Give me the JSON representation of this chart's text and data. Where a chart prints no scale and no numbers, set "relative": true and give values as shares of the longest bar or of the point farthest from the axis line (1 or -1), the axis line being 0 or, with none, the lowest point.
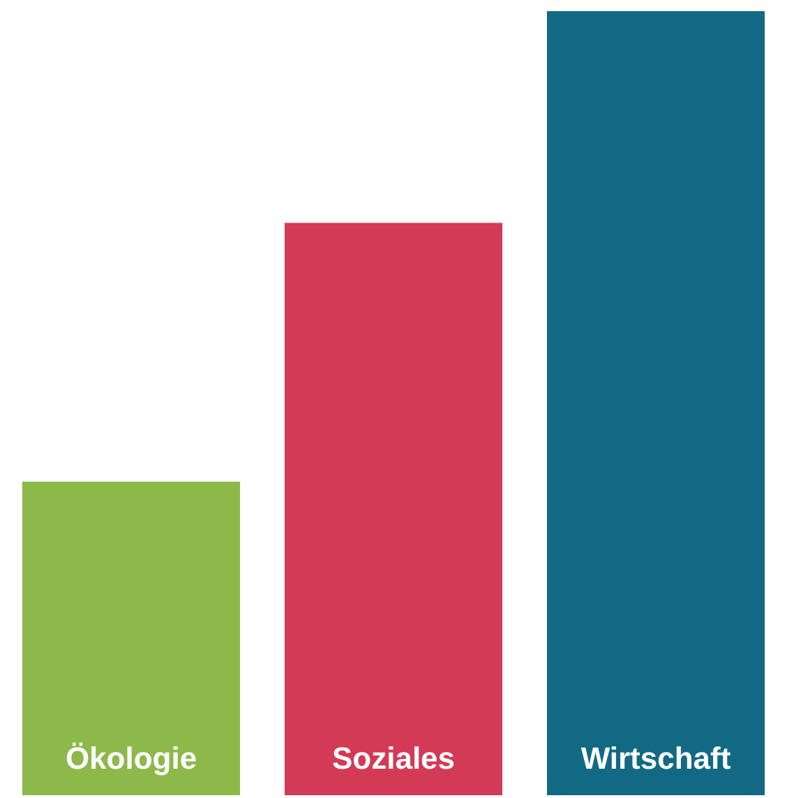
{
  "chart_data": {
    "type": "bar",
    "relative": true,
    "categories": [
      "Ökologie",
      "Soziales",
      "Wirtschaft"
    ],
    "values": [
      0.4,
      0.73,
      1
    ],
    "colors": [
      "#8db84a",
      "#d33a55",
      "#126983"
    ],
    "legend": false
  }
}
